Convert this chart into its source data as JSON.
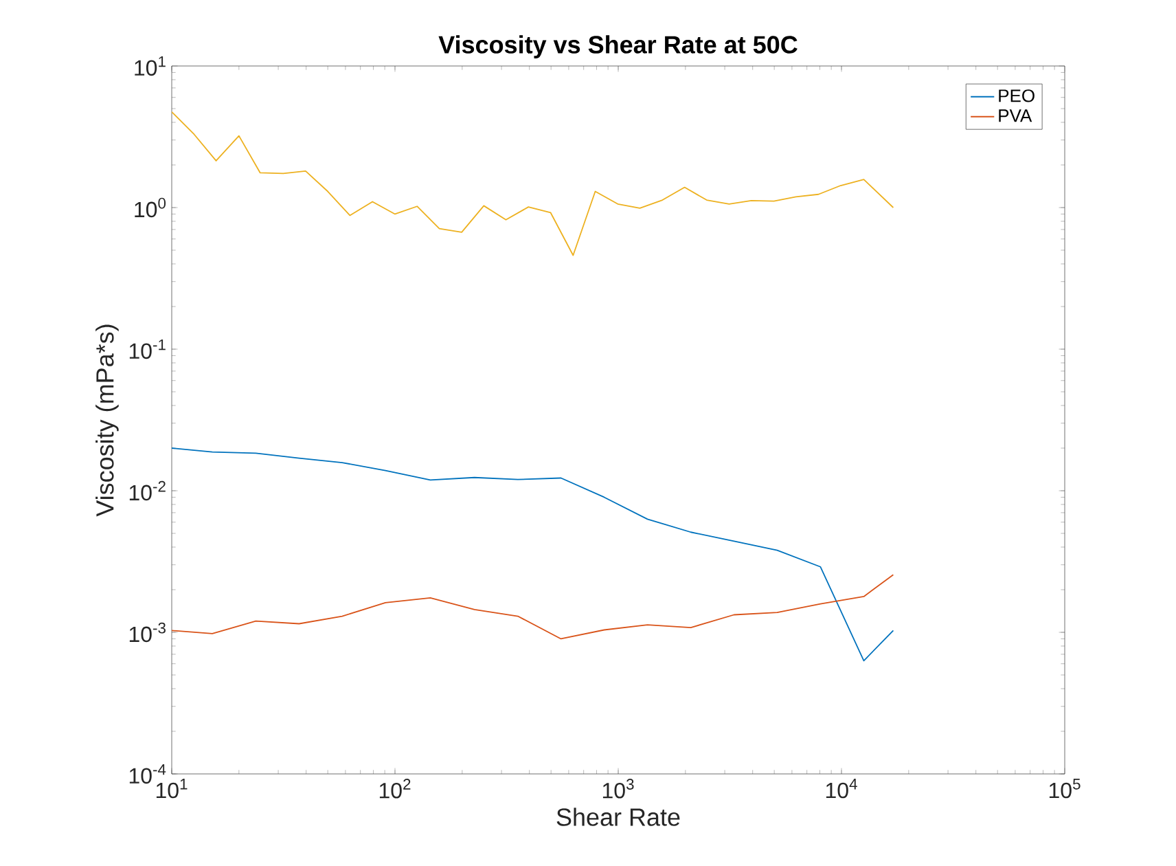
{
  "chart_data": {
    "type": "line",
    "title": "Viscosity vs Shear Rate at 50C",
    "xlabel": "Shear Rate",
    "ylabel": "Viscosity (mPa*s)",
    "log": "xy",
    "legend": "top right",
    "grid": false,
    "xlim": [
      10,
      100000
    ],
    "ylim": [
      0.0001,
      10
    ],
    "xticks": [
      {
        "value": 10,
        "label": "10$^{1}$"
      },
      {
        "value": 100,
        "label": "10$^{2}$"
      },
      {
        "value": 1000,
        "label": "10$^{3}$"
      },
      {
        "value": 10000,
        "label": "10$^{4}$"
      },
      {
        "value": 100000,
        "label": "10$^{5}$"
      }
    ],
    "yticks": [
      {
        "value": 0.0001,
        "label": "10$^{-4}$"
      },
      {
        "value": 0.001,
        "label": "10$^{-3}$"
      },
      {
        "value": 0.01,
        "label": "10$^{-2}$"
      },
      {
        "value": 0.1,
        "label": "10$^{-1}$"
      },
      {
        "value": 1,
        "label": "10$^{0}$"
      },
      {
        "value": 10,
        "label": "10$^{1}$"
      }
    ],
    "series": [
      {
        "name": "PEO",
        "color": "#0072bd",
        "x": [
          10,
          15.2,
          23.8,
          37.2,
          58,
          90.6,
          144,
          227,
          355,
          554,
          865,
          1352,
          2113,
          3300,
          5152,
          8053,
          12590,
          17060
        ],
        "values": [
          0.02,
          0.0188,
          0.0184,
          0.017,
          0.0158,
          0.0139,
          0.0119,
          0.0124,
          0.012,
          0.0123,
          0.009,
          0.0063,
          0.0051,
          0.0044,
          0.0038,
          0.0029,
          0.00063,
          0.00103
        ]
      },
      {
        "name": "PVA",
        "color": "#d95319",
        "x": [
          10,
          15.2,
          23.8,
          37.2,
          58,
          90.6,
          144,
          227,
          355,
          554,
          865,
          1352,
          2113,
          3300,
          5152,
          8053,
          12590,
          17060
        ],
        "values": [
          0.00103,
          0.00098,
          0.0012,
          0.00115,
          0.0013,
          0.00162,
          0.00175,
          0.00145,
          0.0013,
          0.0009,
          0.00104,
          0.00113,
          0.00108,
          0.00133,
          0.00138,
          0.00159,
          0.00179,
          0.00255
        ]
      },
      {
        "color": "#edb120",
        "x": [
          10,
          12.6,
          15.8,
          20,
          24.9,
          31.6,
          39.8,
          50,
          62.8,
          79.3,
          100,
          125.6,
          158,
          199,
          250,
          314,
          396,
          498,
          628,
          789,
          995,
          1250,
          1578,
          1983,
          2490,
          3140,
          3945,
          4980,
          6250,
          7890,
          9910,
          12590,
          17060
        ],
        "values": [
          4.74,
          3.29,
          2.14,
          3.21,
          1.76,
          1.74,
          1.81,
          1.3,
          0.88,
          1.1,
          0.9,
          1.02,
          0.71,
          0.67,
          1.03,
          0.82,
          1.01,
          0.92,
          0.46,
          1.3,
          1.06,
          0.99,
          1.13,
          1.39,
          1.13,
          1.06,
          1.12,
          1.11,
          1.19,
          1.24,
          1.43,
          1.58,
          1.0
        ]
      }
    ]
  }
}
